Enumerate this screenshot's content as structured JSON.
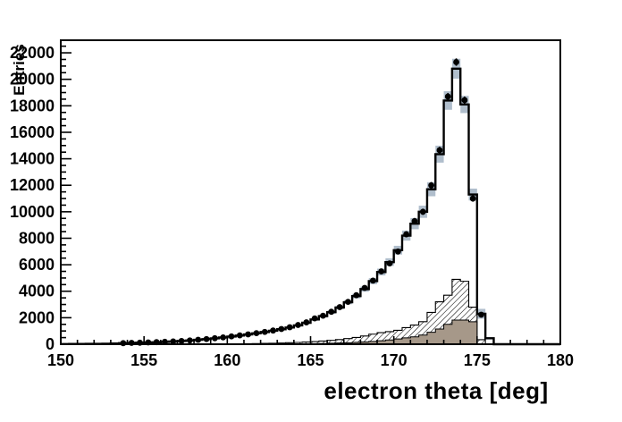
{
  "chart_data": {
    "type": "bar",
    "subtype": "root-histogram-overlay",
    "title": "",
    "xlabel": "electron theta [deg]",
    "ylabel": "Entries",
    "xlim": [
      150,
      180
    ],
    "ylim": [
      0,
      22950
    ],
    "x_major_ticks": [
      150,
      155,
      160,
      165,
      170,
      175,
      180
    ],
    "x_minor_step": 1,
    "y_major_ticks": [
      0,
      2000,
      4000,
      6000,
      8000,
      10000,
      12000,
      14000,
      16000,
      18000,
      20000,
      22000
    ],
    "y_minor_step": 500,
    "grid": false,
    "legend": "none",
    "bin_start": 150,
    "bin_width": 0.5,
    "colors": {
      "frame": "#000000",
      "main_line": "#000000",
      "main_fill": "#ffffff",
      "band": "#b0becc",
      "hatched_fill": "#ffffff",
      "hatch_lines": "#000000",
      "filled_hist": "#a69889",
      "marker": "#000000",
      "text": "#000000"
    },
    "series": [
      {
        "name": "total-histogram-line",
        "style": "step-line",
        "values": [
          15,
          18,
          22,
          26,
          32,
          40,
          55,
          80,
          95,
          110,
          130,
          150,
          175,
          205,
          240,
          280,
          330,
          385,
          445,
          510,
          580,
          655,
          735,
          825,
          920,
          1020,
          1130,
          1260,
          1420,
          1620,
          1870,
          2120,
          2420,
          2770,
          3170,
          3630,
          4160,
          4760,
          5450,
          6200,
          7100,
          8200,
          9100,
          10000,
          11700,
          14350,
          18400,
          20800,
          18100,
          11300,
          2300,
          450,
          0,
          0,
          0,
          0,
          0,
          0,
          0,
          0
        ]
      },
      {
        "name": "uncertainty-band",
        "style": "band",
        "center_series": "total-histogram-line",
        "half_heights": [
          0,
          0,
          0,
          0,
          0,
          0,
          0,
          0,
          0,
          0,
          0,
          0,
          0,
          0,
          0,
          0,
          0,
          0,
          0,
          0,
          0,
          0,
          0,
          0,
          0,
          0,
          0,
          0,
          0,
          0,
          90,
          100,
          115,
          130,
          150,
          170,
          195,
          225,
          255,
          290,
          330,
          380,
          420,
          460,
          530,
          640,
          700,
          750,
          650,
          450,
          370,
          90,
          0,
          0,
          0,
          0,
          0,
          0,
          0,
          0
        ]
      },
      {
        "name": "hatched-histogram",
        "style": "step-hatched",
        "values": [
          0,
          0,
          0,
          0,
          0,
          0,
          0,
          0,
          0,
          0,
          0,
          0,
          0,
          0,
          0,
          0,
          0,
          0,
          0,
          0,
          0,
          30,
          40,
          50,
          62,
          75,
          92,
          112,
          135,
          165,
          200,
          240,
          292,
          352,
          425,
          512,
          618,
          760,
          870,
          950,
          1050,
          1250,
          1450,
          1700,
          2400,
          3200,
          3700,
          4900,
          4750,
          2800,
          340,
          0,
          0,
          0,
          0,
          0,
          0,
          0,
          0,
          0
        ]
      },
      {
        "name": "filled-histogram",
        "style": "step-filled",
        "values": [
          0,
          0,
          0,
          0,
          0,
          0,
          0,
          0,
          0,
          0,
          0,
          0,
          0,
          0,
          0,
          0,
          0,
          0,
          0,
          0,
          0,
          0,
          0,
          0,
          0,
          0,
          0,
          0,
          25,
          35,
          45,
          58,
          72,
          90,
          112,
          140,
          172,
          212,
          262,
          322,
          395,
          485,
          560,
          690,
          900,
          1150,
          1500,
          1820,
          1820,
          1700,
          0,
          0,
          0,
          0,
          0,
          0,
          0,
          0,
          0,
          0
        ]
      },
      {
        "name": "data-points",
        "style": "points",
        "values": [
          null,
          null,
          null,
          null,
          null,
          null,
          null,
          80,
          100,
          115,
          135,
          155,
          180,
          210,
          245,
          285,
          335,
          390,
          450,
          515,
          590,
          665,
          745,
          835,
          930,
          1035,
          1150,
          1280,
          1450,
          1650,
          1950,
          2150,
          2450,
          2800,
          3200,
          3700,
          4250,
          4800,
          5500,
          6100,
          7000,
          8300,
          9300,
          10000,
          12000,
          14650,
          18700,
          21300,
          18430,
          11000,
          2230,
          null,
          null,
          null,
          null,
          null,
          null,
          null,
          null,
          null
        ]
      }
    ]
  }
}
